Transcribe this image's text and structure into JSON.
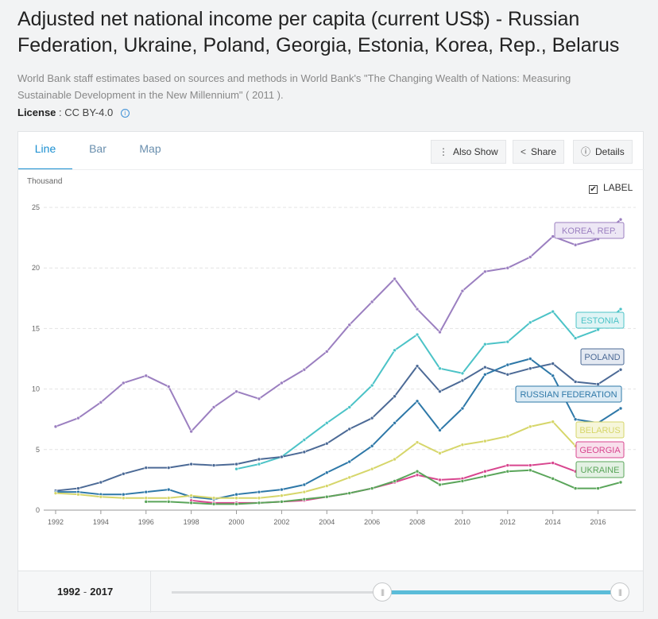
{
  "header": {
    "title": "Adjusted net national income per capita (current US$) - Russian Federation, Ukraine, Poland, Georgia, Estonia, Korea, Rep., Belarus",
    "source": "World Bank staff estimates based on sources and methods in World Bank's \"The Changing Wealth of Nations: Measuring Sustainable Development in the New Millennium\" ( 2011 ).",
    "license_label": "License",
    "license_value": " : CC BY-4.0 "
  },
  "tabs": [
    "Line",
    "Bar",
    "Map"
  ],
  "active_tab": "Line",
  "toolbar": {
    "also_show": "Also Show",
    "share": "Share",
    "details": "Details"
  },
  "label_toggle": {
    "label": "LABEL",
    "checked": true
  },
  "range": {
    "start": "1992",
    "sep": "-",
    "end": "2017"
  },
  "chart_data": {
    "type": "line",
    "unit_label": "Thousand",
    "ylim": [
      0,
      25
    ],
    "y_ticks": [
      0,
      5,
      10,
      15,
      20,
      25
    ],
    "x_ticks": [
      1992,
      1994,
      1996,
      1998,
      2000,
      2002,
      2004,
      2006,
      2008,
      2010,
      2012,
      2014,
      2016
    ],
    "xlim": [
      1992,
      2017
    ],
    "grid": true,
    "series": [
      {
        "name": "KOREA, REP.",
        "color": "#9b7fc0",
        "label_bg": "#ede7f5",
        "x": [
          1992,
          1993,
          1994,
          1995,
          1996,
          1997,
          1998,
          1999,
          2000,
          2001,
          2002,
          2003,
          2004,
          2005,
          2006,
          2007,
          2008,
          2009,
          2010,
          2011,
          2012,
          2013,
          2014,
          2015,
          2016,
          2017
        ],
        "values": [
          6.9,
          7.6,
          8.9,
          10.5,
          11.1,
          10.2,
          6.5,
          8.5,
          9.8,
          9.2,
          10.5,
          11.6,
          13.1,
          15.3,
          17.2,
          19.1,
          16.6,
          14.7,
          18.1,
          19.7,
          20.0,
          20.9,
          22.6,
          21.9,
          22.4,
          24.0
        ]
      },
      {
        "name": "ESTONIA",
        "color": "#4cc3c7",
        "label_bg": "#dff4f5",
        "x": [
          2000,
          2001,
          2002,
          2003,
          2004,
          2005,
          2006,
          2007,
          2008,
          2009,
          2010,
          2011,
          2012,
          2013,
          2014,
          2015,
          2016,
          2017
        ],
        "values": [
          3.4,
          3.8,
          4.4,
          5.8,
          7.2,
          8.5,
          10.3,
          13.2,
          14.5,
          11.7,
          11.3,
          13.7,
          13.9,
          15.5,
          16.4,
          14.2,
          14.9,
          16.6
        ]
      },
      {
        "name": "POLAND",
        "color": "#4c6a96",
        "label_bg": "#e4e9f2",
        "x": [
          1992,
          1993,
          1994,
          1995,
          1996,
          1997,
          1998,
          1999,
          2000,
          2001,
          2002,
          2003,
          2004,
          2005,
          2006,
          2007,
          2008,
          2009,
          2010,
          2011,
          2012,
          2013,
          2014,
          2015,
          2016,
          2017
        ],
        "values": [
          1.6,
          1.8,
          2.3,
          3.0,
          3.5,
          3.5,
          3.8,
          3.7,
          3.8,
          4.2,
          4.4,
          4.8,
          5.5,
          6.7,
          7.6,
          9.4,
          11.9,
          9.8,
          10.7,
          11.8,
          11.2,
          11.7,
          12.1,
          10.6,
          10.4,
          11.6
        ]
      },
      {
        "name": "RUSSIAN FEDERATION",
        "color": "#2e78a8",
        "label_bg": "#dcebf5",
        "x": [
          1992,
          1993,
          1994,
          1995,
          1996,
          1997,
          1998,
          1999,
          2000,
          2001,
          2002,
          2003,
          2004,
          2005,
          2006,
          2007,
          2008,
          2009,
          2010,
          2011,
          2012,
          2013,
          2014,
          2015,
          2016,
          2017
        ],
        "values": [
          1.5,
          1.5,
          1.3,
          1.3,
          1.5,
          1.7,
          1.1,
          0.9,
          1.3,
          1.5,
          1.7,
          2.1,
          3.1,
          4.0,
          5.3,
          7.2,
          9.0,
          6.6,
          8.4,
          11.2,
          12.0,
          12.5,
          11.1,
          7.5,
          7.2,
          8.4
        ]
      },
      {
        "name": "BELARUS",
        "color": "#d6d66a",
        "label_bg": "#f6f6da",
        "x": [
          1992,
          1993,
          1994,
          1995,
          1996,
          1997,
          1998,
          1999,
          2000,
          2001,
          2002,
          2003,
          2004,
          2005,
          2006,
          2007,
          2008,
          2009,
          2010,
          2011,
          2012,
          2013,
          2014,
          2015
        ],
        "values": [
          1.4,
          1.3,
          1.1,
          1.0,
          1.0,
          1.0,
          1.2,
          1.0,
          1.0,
          1.0,
          1.2,
          1.5,
          2.0,
          2.7,
          3.4,
          4.2,
          5.6,
          4.7,
          5.4,
          5.7,
          6.1,
          6.9,
          7.3,
          5.3
        ]
      },
      {
        "name": "GEORGIA",
        "color": "#d8468f",
        "label_bg": "#f8e0ec",
        "x": [
          1998,
          1999,
          2000,
          2001,
          2002,
          2003,
          2004,
          2005,
          2006,
          2007,
          2008,
          2009,
          2010,
          2011,
          2012,
          2013,
          2014,
          2015
        ],
        "values": [
          0.8,
          0.6,
          0.6,
          0.6,
          0.7,
          0.8,
          1.1,
          1.4,
          1.8,
          2.3,
          2.9,
          2.5,
          2.6,
          3.2,
          3.7,
          3.7,
          3.9,
          3.2
        ]
      },
      {
        "name": "UKRAINE",
        "color": "#5aa55a",
        "label_bg": "#e3f1e3",
        "x": [
          1996,
          1997,
          1998,
          1999,
          2000,
          2001,
          2002,
          2003,
          2004,
          2005,
          2006,
          2007,
          2008,
          2009,
          2010,
          2011,
          2012,
          2013,
          2014,
          2015,
          2016,
          2017
        ],
        "values": [
          0.7,
          0.7,
          0.6,
          0.5,
          0.5,
          0.6,
          0.7,
          0.9,
          1.1,
          1.4,
          1.8,
          2.4,
          3.2,
          2.1,
          2.4,
          2.8,
          3.2,
          3.3,
          2.6,
          1.8,
          1.8,
          2.3
        ]
      }
    ]
  }
}
